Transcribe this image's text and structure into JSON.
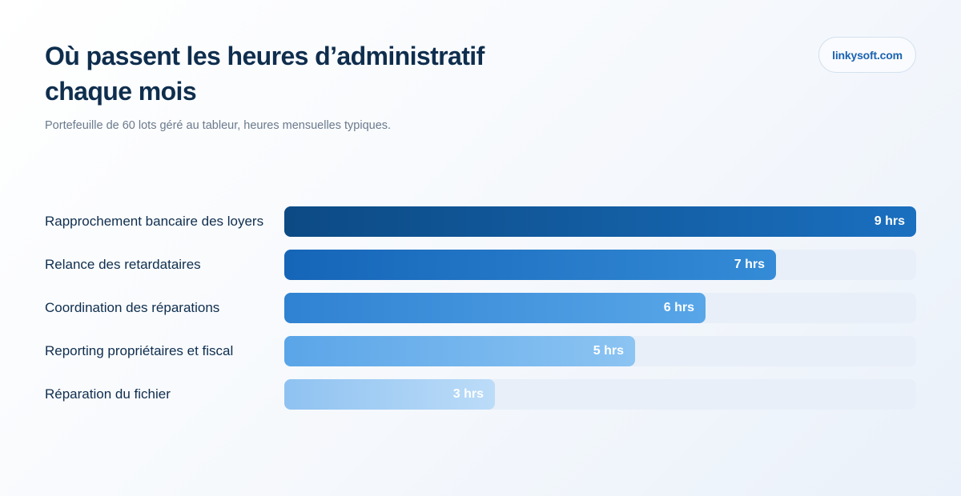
{
  "title": "Où passent les heures d’administratif chaque mois",
  "subtitle": "Portefeuille de 60 lots géré au tableur, heures mensuelles typiques.",
  "brand": "linkysoft.com",
  "chart_data": {
    "type": "bar",
    "orientation": "horizontal",
    "categories": [
      "Rapprochement bancaire des loyers",
      "Relance des retardataires",
      "Coordination des réparations",
      "Reporting propriétaires et fiscal",
      "Réparation du fichier"
    ],
    "values": [
      9,
      7,
      6,
      5,
      3
    ],
    "value_labels": [
      "9 hrs",
      "7 hrs",
      "6 hrs",
      "5 hrs",
      "3 hrs"
    ],
    "xlim": [
      0,
      9
    ],
    "grid": false,
    "legend": "none",
    "colors": [
      [
        "#0c4a84",
        "#1a6fbf"
      ],
      [
        "#1565b8",
        "#348bd6"
      ],
      [
        "#2f82d2",
        "#58a6e8"
      ],
      [
        "#5aa5e8",
        "#8cc4f2"
      ],
      [
        "#8fc2f1",
        "#bcdcf8"
      ]
    ],
    "track_color": "#e8eff8"
  }
}
